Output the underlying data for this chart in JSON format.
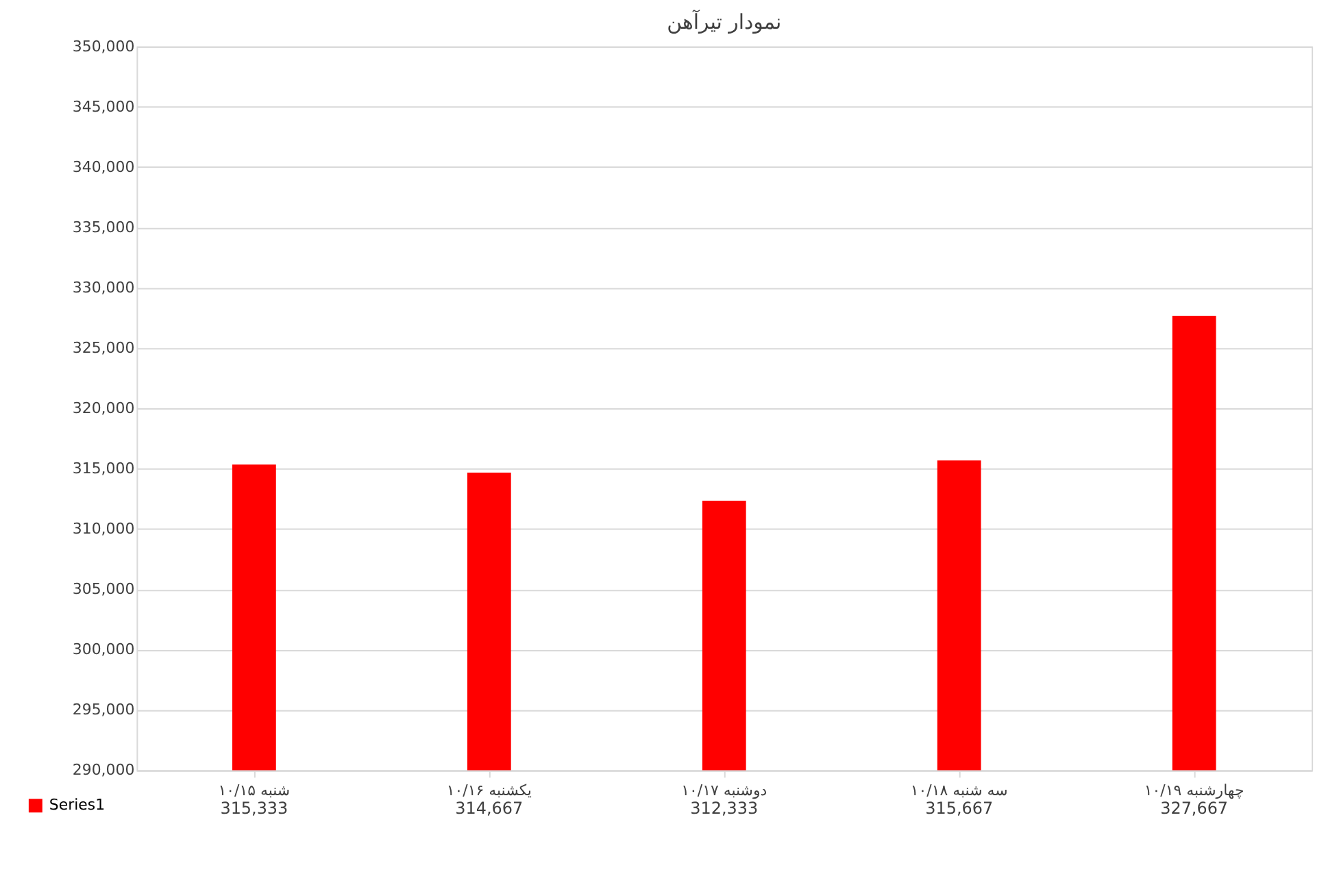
{
  "chart_data": {
    "type": "bar",
    "title": "نمودار تیرآهن",
    "categories": [
      "شنبه ۱۰/۱۵",
      "یکشنبه ۱۰/۱۶",
      "دوشنبه ۱۰/۱۷",
      "سه شنبه ۱۰/۱۸",
      "چهارشنبه ۱۰/۱۹"
    ],
    "series": [
      {
        "name": "Series1",
        "color": "#ff0000",
        "values": [
          315333,
          314667,
          312333,
          315667,
          327667
        ],
        "value_labels": [
          "315,333",
          "314,667",
          "312,333",
          "315,667",
          "327,667"
        ]
      }
    ],
    "ylim": [
      290000,
      350000
    ],
    "yticks": [
      {
        "value": 290000,
        "label": "290,000"
      },
      {
        "value": 295000,
        "label": "295,000"
      },
      {
        "value": 300000,
        "label": "300,000"
      },
      {
        "value": 305000,
        "label": "305,000"
      },
      {
        "value": 310000,
        "label": "310,000"
      },
      {
        "value": 315000,
        "label": "315,000"
      },
      {
        "value": 320000,
        "label": "320,000"
      },
      {
        "value": 325000,
        "label": "325,000"
      },
      {
        "value": 330000,
        "label": "330,000"
      },
      {
        "value": 335000,
        "label": "335,000"
      },
      {
        "value": 340000,
        "label": "340,000"
      },
      {
        "value": 345000,
        "label": "345,000"
      },
      {
        "value": 350000,
        "label": "350,000"
      }
    ],
    "grid": "y",
    "legend": "bottom left"
  }
}
